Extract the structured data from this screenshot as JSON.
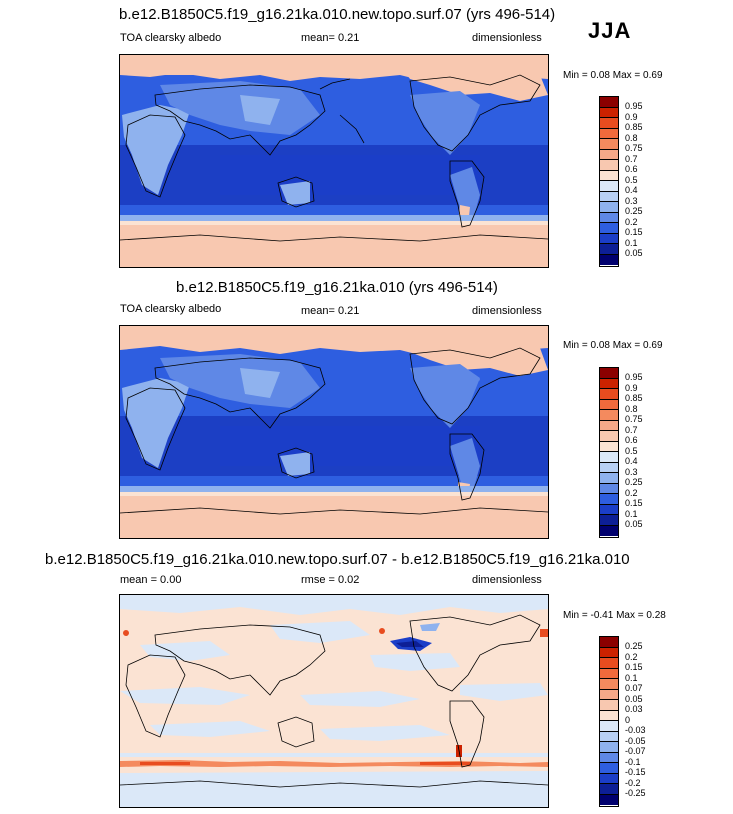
{
  "season": "JJA",
  "panels": [
    {
      "title": "b.e12.B1850C5.f19_g16.21ka.010.new.topo.surf.07 (yrs 496-514)",
      "left_label": "TOA clearsky albedo",
      "center_label": "mean=   0.21",
      "right_label": "dimensionless",
      "min_max": "Min =   0.08 Max =   0.69",
      "colorbar_labels": [
        "0.95",
        "0.9",
        "0.85",
        "0.8",
        "0.75",
        "0.7",
        "0.6",
        "0.5",
        "0.4",
        "0.3",
        "0.25",
        "0.2",
        "0.15",
        "0.1",
        "0.05"
      ],
      "colorbar_colors": [
        "#8b0000",
        "#cc2200",
        "#e84c1f",
        "#f06a3c",
        "#f48a5e",
        "#f6a888",
        "#f8c8b0",
        "#fbe3d3",
        "#dbe8f8",
        "#b8d0f4",
        "#8fb2ee",
        "#5f88e6",
        "#2e5ee0",
        "#1b3ec8",
        "#0d1f96",
        "#00006e"
      ]
    },
    {
      "title": "b.e12.B1850C5.f19_g16.21ka.010 (yrs 496-514)",
      "left_label": "TOA clearsky albedo",
      "center_label": "mean=   0.21",
      "right_label": "dimensionless",
      "min_max": "Min =   0.08 Max =   0.69",
      "colorbar_labels": [
        "0.95",
        "0.9",
        "0.85",
        "0.8",
        "0.75",
        "0.7",
        "0.6",
        "0.5",
        "0.4",
        "0.3",
        "0.25",
        "0.2",
        "0.15",
        "0.1",
        "0.05"
      ],
      "colorbar_colors": [
        "#8b0000",
        "#cc2200",
        "#e84c1f",
        "#f06a3c",
        "#f48a5e",
        "#f6a888",
        "#f8c8b0",
        "#fbe3d3",
        "#dbe8f8",
        "#b8d0f4",
        "#8fb2ee",
        "#5f88e6",
        "#2e5ee0",
        "#1b3ec8",
        "#0d1f96",
        "#00006e"
      ]
    },
    {
      "title": "b.e12.B1850C5.f19_g16.21ka.010.new.topo.surf.07 - b.e12.B1850C5.f19_g16.21ka.010",
      "left_label": "mean =   0.00",
      "center_label": "rmse =   0.02",
      "right_label": "dimensionless",
      "min_max": "Min =  -0.41 Max =   0.28",
      "colorbar_labels": [
        "0.25",
        "0.2",
        "0.15",
        "0.1",
        "0.07",
        "0.05",
        "0.03",
        "0",
        "-0.03",
        "-0.05",
        "-0.07",
        "-0.1",
        "-0.15",
        "-0.2",
        "-0.25"
      ],
      "colorbar_colors": [
        "#8b0000",
        "#cc2200",
        "#e84c1f",
        "#f06a3c",
        "#f48a5e",
        "#f6a888",
        "#f8c8b0",
        "#fbe3d3",
        "#dbe8f8",
        "#b8d0f4",
        "#8fb2ee",
        "#5f88e6",
        "#2e5ee0",
        "#1b3ec8",
        "#0d1f96",
        "#00006e"
      ]
    }
  ],
  "colors": {
    "ocean_dark": "#1c3fc4",
    "ocean_mid": "#2e5ee0",
    "land_light": "#8fb2ee",
    "ice_pink": "#f8c8b0",
    "diff_zero_pos": "#fbe3d3",
    "diff_zero_neg": "#dbe8f8"
  }
}
